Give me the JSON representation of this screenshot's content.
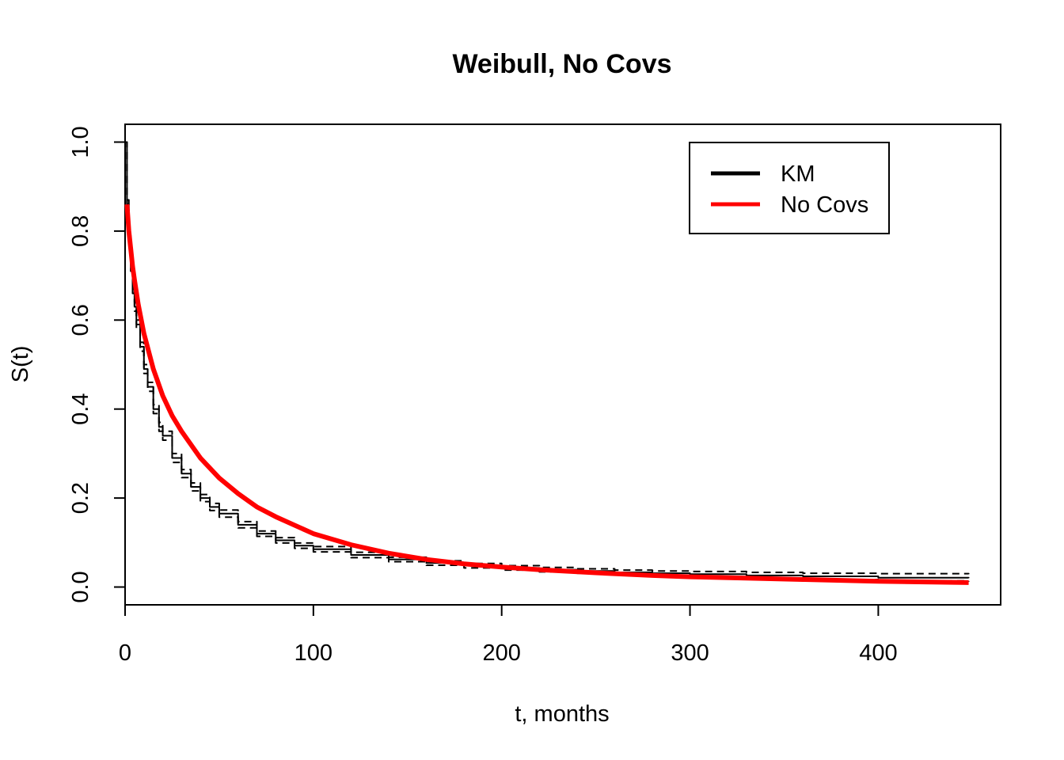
{
  "chart_data": {
    "type": "line",
    "title": "Weibull, No Covs",
    "xlabel": "t, months",
    "ylabel": "S(t)",
    "xlim": [
      0,
      465
    ],
    "ylim": [
      -0.04,
      1.04
    ],
    "xticks": [
      0,
      100,
      200,
      300,
      400
    ],
    "xtick_labels": [
      "0",
      "100",
      "200",
      "300",
      "400"
    ],
    "yticks": [
      0.0,
      0.2,
      0.4,
      0.6,
      0.8,
      1.0
    ],
    "ytick_labels": [
      "0.0",
      "0.2",
      "0.4",
      "0.6",
      "0.8",
      "1.0"
    ],
    "grid": false,
    "legend": {
      "position": "top-right",
      "entries": [
        {
          "label": "KM",
          "color": "#000000"
        },
        {
          "label": "No Covs",
          "color": "#ff0000"
        }
      ]
    },
    "series": [
      {
        "name": "KM",
        "style": "step",
        "color": "#000000",
        "x": [
          0,
          1,
          2,
          3,
          4,
          5,
          6,
          8,
          10,
          12,
          15,
          18,
          20,
          25,
          30,
          35,
          40,
          45,
          50,
          60,
          70,
          80,
          90,
          100,
          120,
          140,
          160,
          180,
          200,
          220,
          240,
          260,
          280,
          300,
          330,
          360,
          400,
          448
        ],
        "y": [
          1.0,
          0.86,
          0.78,
          0.72,
          0.67,
          0.63,
          0.59,
          0.54,
          0.49,
          0.45,
          0.4,
          0.36,
          0.34,
          0.29,
          0.255,
          0.225,
          0.2,
          0.18,
          0.165,
          0.14,
          0.12,
          0.105,
          0.093,
          0.085,
          0.072,
          0.062,
          0.054,
          0.048,
          0.043,
          0.039,
          0.036,
          0.033,
          0.031,
          0.029,
          0.026,
          0.024,
          0.021,
          0.02
        ]
      },
      {
        "name": "KM lower",
        "style": "step-dashed",
        "color": "#000000",
        "x": [
          0,
          1,
          2,
          3,
          4,
          5,
          6,
          8,
          10,
          12,
          15,
          18,
          20,
          25,
          30,
          35,
          40,
          45,
          50,
          60,
          70,
          80,
          90,
          100,
          120,
          140,
          160,
          180,
          200,
          220,
          240,
          260,
          280,
          300,
          330,
          360,
          400,
          448
        ],
        "y": [
          1.0,
          0.85,
          0.77,
          0.71,
          0.66,
          0.62,
          0.58,
          0.53,
          0.48,
          0.44,
          0.39,
          0.35,
          0.33,
          0.28,
          0.246,
          0.216,
          0.192,
          0.172,
          0.157,
          0.133,
          0.114,
          0.099,
          0.087,
          0.079,
          0.066,
          0.057,
          0.049,
          0.043,
          0.038,
          0.034,
          0.031,
          0.028,
          0.026,
          0.023,
          0.02,
          0.017,
          0.014,
          0.012
        ]
      },
      {
        "name": "KM upper",
        "style": "step-dashed",
        "color": "#000000",
        "x": [
          0,
          1,
          2,
          3,
          4,
          5,
          6,
          8,
          10,
          12,
          15,
          18,
          20,
          25,
          30,
          35,
          40,
          45,
          50,
          60,
          70,
          80,
          90,
          100,
          120,
          140,
          160,
          180,
          200,
          220,
          240,
          260,
          280,
          300,
          330,
          360,
          400,
          448
        ],
        "y": [
          1.0,
          0.87,
          0.79,
          0.73,
          0.68,
          0.64,
          0.6,
          0.55,
          0.5,
          0.46,
          0.41,
          0.37,
          0.35,
          0.3,
          0.264,
          0.234,
          0.208,
          0.188,
          0.173,
          0.147,
          0.126,
          0.111,
          0.099,
          0.091,
          0.078,
          0.067,
          0.059,
          0.053,
          0.048,
          0.044,
          0.041,
          0.038,
          0.036,
          0.035,
          0.033,
          0.031,
          0.03,
          0.029
        ]
      },
      {
        "name": "No Covs",
        "style": "line",
        "color": "#ff0000",
        "x": [
          1,
          2,
          3,
          4,
          5,
          7,
          10,
          15,
          20,
          25,
          30,
          40,
          50,
          60,
          70,
          80,
          100,
          120,
          140,
          160,
          180,
          200,
          220,
          250,
          280,
          300,
          330,
          360,
          400,
          448
        ],
        "y": [
          0.86,
          0.8,
          0.76,
          0.72,
          0.69,
          0.635,
          0.57,
          0.49,
          0.43,
          0.385,
          0.35,
          0.29,
          0.245,
          0.21,
          0.18,
          0.158,
          0.12,
          0.095,
          0.076,
          0.062,
          0.052,
          0.045,
          0.039,
          0.032,
          0.026,
          0.023,
          0.02,
          0.017,
          0.013,
          0.01
        ]
      }
    ]
  }
}
